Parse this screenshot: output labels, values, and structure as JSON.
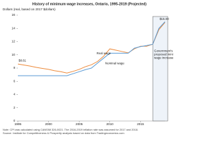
{
  "chart_data": {
    "type": "line",
    "title": "History of minimum wage increases, Ontario, 1995-2019 (Projected)",
    "y_label": "Dollars (real, based on 2017 $dollars)",
    "x": [
      1995,
      1996,
      1997,
      1998,
      1999,
      2000,
      2001,
      2002,
      2003,
      2004,
      2005,
      2006,
      2007,
      2008,
      2009,
      2010,
      2011,
      2012,
      2013,
      2014,
      2015,
      2016,
      2017,
      2018,
      2019
    ],
    "series": [
      {
        "name": "Real wage",
        "color": "#ed8b3c",
        "values": [
          8.61,
          8.45,
          8.3,
          8.1,
          7.95,
          7.8,
          7.6,
          7.45,
          7.25,
          7.5,
          7.8,
          8.2,
          8.5,
          9.0,
          9.8,
          10.9,
          10.7,
          10.5,
          10.3,
          10.9,
          11.3,
          11.3,
          11.6,
          13.8,
          14.9
        ]
      },
      {
        "name": "Nominal wage",
        "color": "#5b9bd5",
        "values": [
          6.85,
          6.85,
          6.85,
          6.85,
          6.85,
          6.85,
          6.85,
          6.85,
          6.85,
          7.15,
          7.45,
          7.75,
          8.0,
          8.75,
          9.5,
          10.25,
          10.25,
          10.25,
          10.25,
          11.0,
          11.25,
          11.4,
          11.6,
          14.0,
          15.0
        ]
      }
    ],
    "xlim": [
      1995,
      2019
    ],
    "xticks": [
      1995,
      2000,
      2005,
      2010,
      2015
    ],
    "ylim": [
      0,
      16
    ],
    "yticks": [
      0,
      2,
      4,
      6,
      8,
      10,
      12,
      14,
      16
    ],
    "annotations": [
      "$8.61",
      "$15.00",
      "Government's proposed minimum wage increases"
    ],
    "notes": [
      "Note: CPI was calculated using CANSIM 326-0021. The 2016-2019 inflation rate was assumed for 2017 and 2018.",
      "Source: Institute for Competitiveness & Prosperity analysis based on data from Tradingeconomics.com"
    ]
  }
}
